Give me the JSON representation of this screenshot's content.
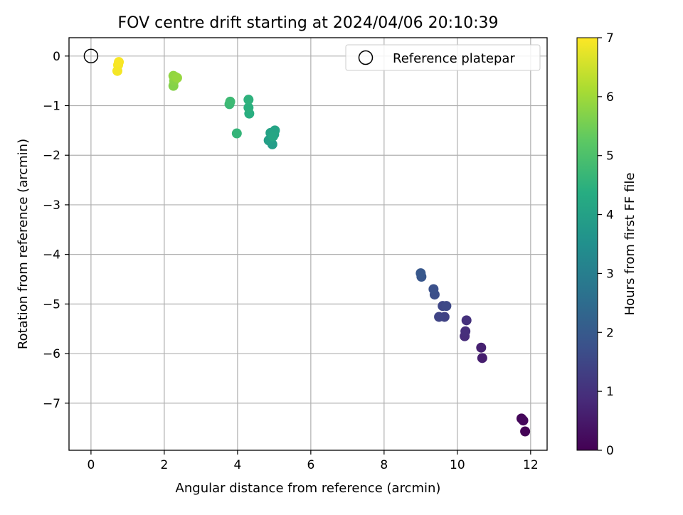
{
  "chart_data": {
    "type": "scatter",
    "title": "FOV centre drift starting at 2024/04/06 20:10:39",
    "xlabel": "Angular distance from reference (arcmin)",
    "ylabel": "Rotation from reference (arcmin)",
    "xlim": [
      -0.6,
      12.45
    ],
    "ylim": [
      -7.95,
      0.37
    ],
    "xticks": [
      0,
      2,
      4,
      6,
      8,
      10,
      12
    ],
    "yticks": [
      0,
      -1,
      -2,
      -3,
      -4,
      -5,
      -6,
      -7
    ],
    "grid": true,
    "legend": {
      "label": "Reference platepar",
      "placement": "top-right"
    },
    "reference_point": {
      "x": 0,
      "y": 0
    },
    "colorbar": {
      "label": "Hours from first FF file",
      "range": [
        0,
        7
      ],
      "ticks": [
        0,
        1,
        2,
        3,
        4,
        5,
        6,
        7
      ],
      "colormap": "viridis"
    },
    "points": [
      {
        "x": 11.85,
        "y": -7.57,
        "c": 0.05
      },
      {
        "x": 11.75,
        "y": -7.31,
        "c": 0.1
      },
      {
        "x": 11.8,
        "y": -7.35,
        "c": 0.15
      },
      {
        "x": 10.68,
        "y": -6.09,
        "c": 0.6
      },
      {
        "x": 10.65,
        "y": -5.88,
        "c": 0.65
      },
      {
        "x": 10.2,
        "y": -5.65,
        "c": 0.9
      },
      {
        "x": 10.22,
        "y": -5.55,
        "c": 0.95
      },
      {
        "x": 10.25,
        "y": -5.33,
        "c": 1.0
      },
      {
        "x": 9.65,
        "y": -5.26,
        "c": 1.4
      },
      {
        "x": 9.5,
        "y": -5.26,
        "c": 1.45
      },
      {
        "x": 9.6,
        "y": -5.04,
        "c": 1.5
      },
      {
        "x": 9.7,
        "y": -5.04,
        "c": 1.55
      },
      {
        "x": 9.38,
        "y": -4.81,
        "c": 1.7
      },
      {
        "x": 9.35,
        "y": -4.7,
        "c": 1.75
      },
      {
        "x": 9.02,
        "y": -4.45,
        "c": 1.9
      },
      {
        "x": 9.0,
        "y": -4.38,
        "c": 1.95
      },
      {
        "x": 4.95,
        "y": -1.78,
        "c": 3.9
      },
      {
        "x": 4.85,
        "y": -1.7,
        "c": 3.95
      },
      {
        "x": 5.0,
        "y": -1.58,
        "c": 4.0
      },
      {
        "x": 4.9,
        "y": -1.55,
        "c": 4.05
      },
      {
        "x": 5.02,
        "y": -1.5,
        "c": 4.1
      },
      {
        "x": 4.97,
        "y": -1.62,
        "c": 4.15
      },
      {
        "x": 3.98,
        "y": -1.56,
        "c": 4.6
      },
      {
        "x": 4.32,
        "y": -1.16,
        "c": 4.4
      },
      {
        "x": 4.3,
        "y": -1.04,
        "c": 4.45
      },
      {
        "x": 4.3,
        "y": -0.88,
        "c": 4.5
      },
      {
        "x": 3.78,
        "y": -0.97,
        "c": 4.7
      },
      {
        "x": 3.8,
        "y": -0.92,
        "c": 4.75
      },
      {
        "x": 2.25,
        "y": -0.6,
        "c": 5.7
      },
      {
        "x": 2.27,
        "y": -0.5,
        "c": 5.75
      },
      {
        "x": 2.3,
        "y": -0.42,
        "c": 5.8
      },
      {
        "x": 2.25,
        "y": -0.4,
        "c": 5.85
      },
      {
        "x": 2.35,
        "y": -0.44,
        "c": 5.9
      },
      {
        "x": 0.72,
        "y": -0.3,
        "c": 6.9
      },
      {
        "x": 0.74,
        "y": -0.18,
        "c": 6.92
      },
      {
        "x": 0.76,
        "y": -0.12,
        "c": 6.95
      }
    ]
  }
}
